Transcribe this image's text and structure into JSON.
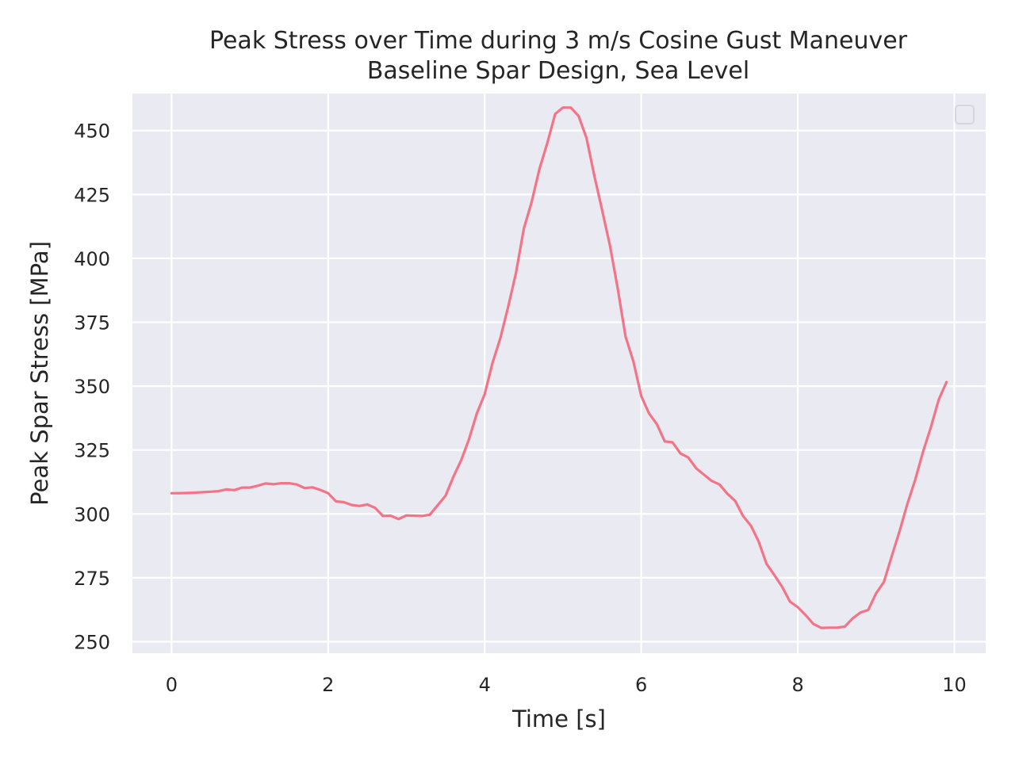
{
  "chart_data": {
    "type": "line",
    "title": "Peak Stress over Time during 3 m/s Cosine Gust Maneuver",
    "subtitle": "Baseline Spar Design, Sea Level",
    "xlabel": "Time [s]",
    "ylabel": "Peak Spar Stress [MPa]",
    "xlim": [
      -0.5,
      10.4
    ],
    "ylim": [
      245.5,
      464.5
    ],
    "xticks": [
      0,
      2,
      4,
      6,
      8,
      10
    ],
    "yticks": [
      250,
      275,
      300,
      325,
      350,
      375,
      400,
      425,
      450
    ],
    "grid": true,
    "legend": "top-right, empty",
    "colors": {
      "series": "#f37387",
      "background": "#eaeaf2",
      "grid": "#ffffff"
    },
    "series": [
      {
        "x": [
          0.0,
          0.1,
          0.2,
          0.3,
          0.4,
          0.5,
          0.6,
          0.7,
          0.8,
          0.9,
          1.0,
          1.1,
          1.2,
          1.3,
          1.4,
          1.5,
          1.6,
          1.7,
          1.8,
          1.9,
          2.0,
          2.1,
          2.2,
          2.3,
          2.4,
          2.5,
          2.6,
          2.7,
          2.8,
          2.9,
          3.0,
          3.1,
          3.2,
          3.3,
          3.4,
          3.5,
          3.6,
          3.7,
          3.8,
          3.9,
          4.0,
          4.1,
          4.2,
          4.3,
          4.4,
          4.5,
          4.6,
          4.7,
          4.8,
          4.9,
          5.0,
          5.1,
          5.2,
          5.3,
          5.4,
          5.5,
          5.6,
          5.7,
          5.8,
          5.9,
          6.0,
          6.1,
          6.2,
          6.3,
          6.4,
          6.5,
          6.6,
          6.7,
          6.8,
          6.9,
          7.0,
          7.1,
          7.2,
          7.3,
          7.4,
          7.5,
          7.6,
          7.7,
          7.8,
          7.9,
          8.0,
          8.1,
          8.2,
          8.3,
          8.4,
          8.5,
          8.6,
          8.7,
          8.8,
          8.9,
          9.0,
          9.1,
          9.2,
          9.3,
          9.4,
          9.5,
          9.6,
          9.7,
          9.8,
          9.9
        ],
        "values": [
          308.1,
          308.1,
          308.2,
          308.3,
          308.5,
          308.7,
          308.9,
          309.6,
          309.3,
          310.3,
          310.3,
          311.0,
          311.9,
          311.6,
          312.0,
          312.0,
          311.5,
          310.1,
          310.4,
          309.4,
          308.1,
          304.9,
          304.6,
          303.5,
          303.1,
          303.7,
          302.4,
          299.2,
          299.3,
          298.0,
          299.4,
          299.3,
          299.2,
          299.7,
          303.4,
          307.1,
          314.5,
          321.0,
          329.3,
          339.3,
          346.8,
          359.1,
          368.8,
          381.0,
          394.3,
          411.6,
          422.0,
          435.0,
          445.1,
          456.5,
          459.0,
          459.0,
          455.7,
          447.1,
          432.5,
          418.9,
          405.0,
          388.2,
          369.4,
          359.6,
          346.1,
          339.3,
          335.1,
          328.4,
          328.0,
          323.7,
          322.1,
          317.9,
          315.4,
          312.9,
          311.5,
          307.9,
          305.1,
          299.2,
          295.4,
          289.2,
          280.5,
          276.1,
          271.5,
          265.7,
          263.5,
          260.4,
          256.9,
          255.4,
          255.5,
          255.5,
          255.9,
          259.1,
          261.4,
          262.4,
          268.9,
          273.4,
          283.4,
          293.2,
          303.9,
          313.4,
          324.3,
          333.9,
          344.7,
          351.6
        ]
      }
    ]
  }
}
